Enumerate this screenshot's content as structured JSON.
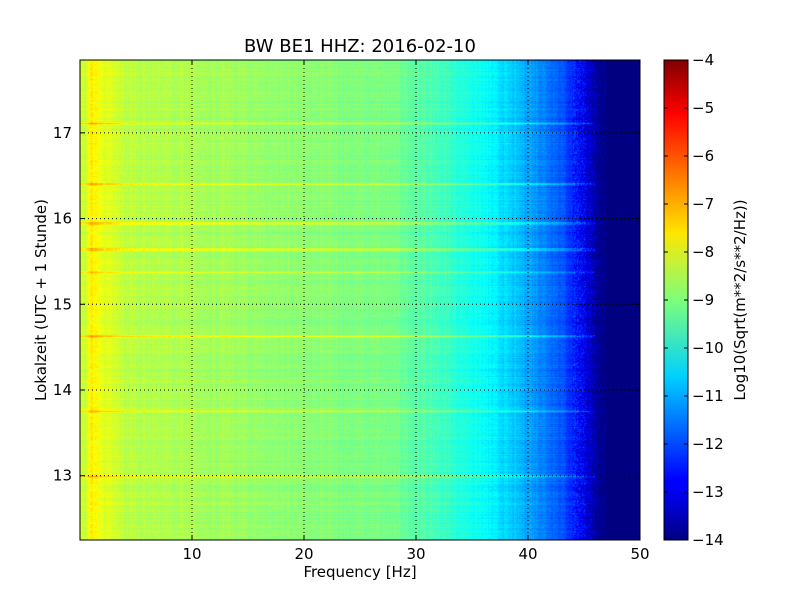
{
  "chart_data": {
    "type": "heatmap",
    "title": "BW BE1 HHZ: 2016-02-10",
    "xlabel": "Frequency [Hz]",
    "ylabel": "Lokalzeit (UTC + 1 Stunde)",
    "xlim": [
      0,
      50
    ],
    "ylim": [
      17.85,
      12.25
    ],
    "x_ticks": [
      10,
      20,
      30,
      40,
      50
    ],
    "x_tick_labels": [
      "10",
      "20",
      "30",
      "40",
      "50"
    ],
    "y_ticks": [
      13,
      14,
      15,
      16,
      17
    ],
    "y_tick_labels": [
      "13",
      "14",
      "15",
      "16",
      "17"
    ],
    "grid": true,
    "colormap": "jet",
    "colorbar": {
      "label": "Log10(Sqrt(m**2/s**2/Hz))",
      "range": [
        -14,
        -4
      ],
      "ticks": [
        -4,
        -5,
        -6,
        -7,
        -8,
        -9,
        -10,
        -11,
        -12,
        -13,
        -14
      ],
      "tick_labels": [
        "−4",
        "−5",
        "−6",
        "−7",
        "−8",
        "−9",
        "−10",
        "−11",
        "−12",
        "−13",
        "−14"
      ]
    },
    "spectrum_profile": {
      "frequency_hz": [
        0.5,
        1.0,
        2.0,
        4.0,
        10.0,
        20.0,
        28.0,
        32.0,
        36.0,
        40.0,
        43.0,
        45.0,
        46.5,
        50.0
      ],
      "log10_amplitude": [
        -8.3,
        -7.6,
        -8.0,
        -8.4,
        -8.6,
        -8.9,
        -9.1,
        -9.6,
        -10.2,
        -11.1,
        -11.9,
        -12.9,
        -14.0,
        -14.0
      ]
    },
    "bright_bands_hour": [
      13.0,
      13.75,
      14.63,
      15.38,
      15.65,
      15.95,
      16.4,
      17.12
    ]
  }
}
